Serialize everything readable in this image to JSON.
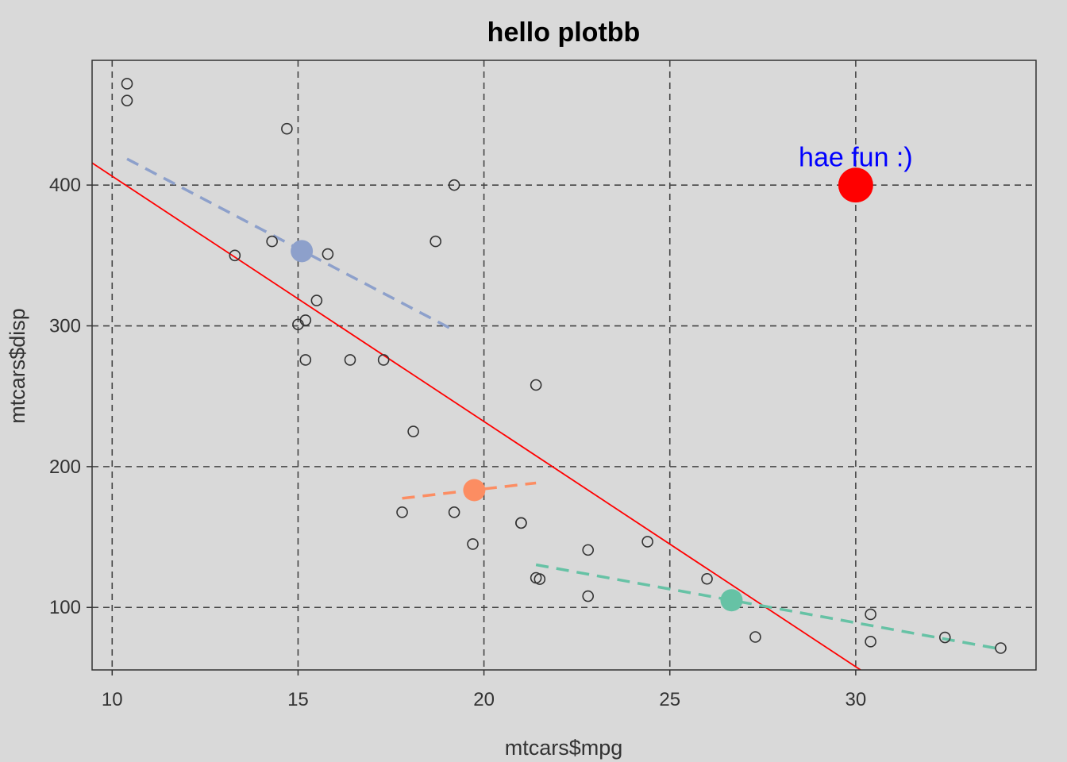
{
  "chart_data": {
    "type": "scatter",
    "title": "hello plotbb",
    "xlabel": "mtcars$mpg",
    "ylabel": "mtcars$disp",
    "xlim": [
      9.46,
      34.85
    ],
    "ylim": [
      55.6,
      488.6
    ],
    "xticks": [
      10,
      15,
      20,
      25,
      30
    ],
    "yticks": [
      100,
      200,
      300,
      400
    ],
    "grid": true,
    "points": {
      "x": [
        21.0,
        21.0,
        22.8,
        21.4,
        18.7,
        18.1,
        14.3,
        24.4,
        22.8,
        19.2,
        17.8,
        16.4,
        17.3,
        15.2,
        10.4,
        10.4,
        14.7,
        32.4,
        30.4,
        33.9,
        21.5,
        15.5,
        15.2,
        13.3,
        19.2,
        27.3,
        26.0,
        30.4,
        15.8,
        19.7,
        15.0,
        21.4
      ],
      "y": [
        160,
        160,
        108,
        258,
        360,
        225,
        360,
        146.7,
        140.8,
        167.6,
        167.6,
        275.8,
        275.8,
        275.8,
        472,
        460,
        440,
        78.7,
        75.7,
        71.1,
        120.1,
        318,
        304,
        350,
        400,
        79,
        120.3,
        95.1,
        351,
        145,
        301,
        121
      ]
    },
    "overall_fit": {
      "x": [
        9.46,
        30.13
      ],
      "y": [
        415.7,
        55.6
      ],
      "color": "#ff0000"
    },
    "group_fits": [
      {
        "x": [
          10.4,
          19.2
        ],
        "y": [
          418.6,
          296.8
        ],
        "color": "#8da0cb"
      },
      {
        "x": [
          17.8,
          21.4
        ],
        "y": [
          177.5,
          188.4
        ],
        "color": "#fc8d62"
      },
      {
        "x": [
          21.4,
          33.9
        ],
        "y": [
          130.3,
          70.4
        ],
        "color": "#66c2a5"
      }
    ],
    "group_means": [
      {
        "x": 15.1,
        "y": 353.1,
        "color": "#8da0cb"
      },
      {
        "x": 19.74,
        "y": 183.3,
        "color": "#fc8d62"
      },
      {
        "x": 26.66,
        "y": 105.1,
        "color": "#66c2a5"
      }
    ],
    "highlight": {
      "x": 30,
      "y": 400,
      "color": "#ff0000"
    },
    "annotation": {
      "text": "hae fun :)",
      "x": 30,
      "y": 420,
      "color": "#0000ff"
    }
  }
}
